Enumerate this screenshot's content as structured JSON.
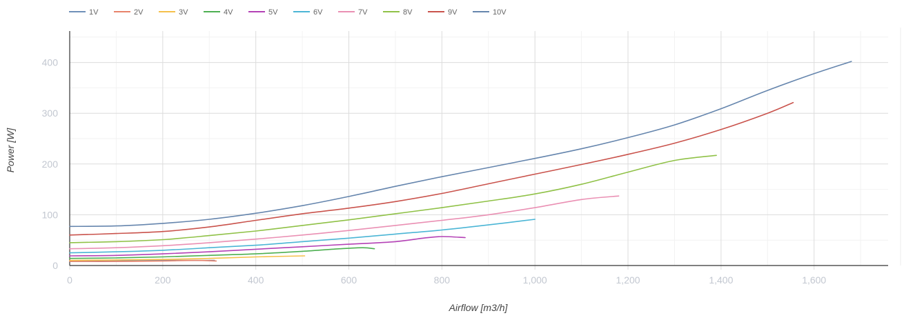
{
  "chart_data": {
    "type": "line",
    "xlabel": "Airflow [m3/h]",
    "ylabel": "Power [W]",
    "xlim": [
      0,
      1750
    ],
    "ylim": [
      0,
      460
    ],
    "x_ticks": [
      {
        "value": 0,
        "label": "0"
      },
      {
        "value": 200,
        "label": "200"
      },
      {
        "value": 400,
        "label": "400"
      },
      {
        "value": 600,
        "label": "600"
      },
      {
        "value": 800,
        "label": "800"
      },
      {
        "value": 1000,
        "label": "1,000"
      },
      {
        "value": 1200,
        "label": "1,200"
      },
      {
        "value": 1400,
        "label": "1,400"
      },
      {
        "value": 1600,
        "label": "1,600"
      }
    ],
    "y_ticks": [
      {
        "value": 0,
        "label": "0"
      },
      {
        "value": 100,
        "label": "100"
      },
      {
        "value": 200,
        "label": "200"
      },
      {
        "value": 300,
        "label": "300"
      },
      {
        "value": 400,
        "label": "400"
      }
    ],
    "grid": true,
    "legend_position": "top-left",
    "series": [
      {
        "name": "1V",
        "color": "#6e8fb8",
        "points": [
          [
            0,
            8
          ],
          [
            100,
            9
          ],
          [
            200,
            10
          ],
          [
            300,
            10
          ],
          [
            310,
            10
          ]
        ]
      },
      {
        "name": "2V",
        "color": "#e8826a",
        "points": [
          [
            0,
            8
          ],
          [
            100,
            8
          ],
          [
            200,
            9
          ],
          [
            270,
            10
          ],
          [
            315,
            9
          ]
        ]
      },
      {
        "name": "3V",
        "color": "#f5c04a",
        "points": [
          [
            0,
            10
          ],
          [
            100,
            11
          ],
          [
            200,
            12
          ],
          [
            300,
            14
          ],
          [
            400,
            17
          ],
          [
            505,
            19
          ]
        ]
      },
      {
        "name": "4V",
        "color": "#4caf50",
        "points": [
          [
            0,
            14
          ],
          [
            100,
            15
          ],
          [
            200,
            17
          ],
          [
            300,
            20
          ],
          [
            400,
            23
          ],
          [
            500,
            28
          ],
          [
            580,
            33
          ],
          [
            630,
            35
          ],
          [
            655,
            33
          ]
        ]
      },
      {
        "name": "5V",
        "color": "#b340b5",
        "points": [
          [
            0,
            19
          ],
          [
            100,
            20
          ],
          [
            200,
            23
          ],
          [
            300,
            27
          ],
          [
            400,
            32
          ],
          [
            500,
            37
          ],
          [
            600,
            42
          ],
          [
            700,
            47
          ],
          [
            760,
            54
          ],
          [
            800,
            57
          ],
          [
            850,
            55
          ]
        ]
      },
      {
        "name": "6V",
        "color": "#4ab5d5",
        "points": [
          [
            0,
            25
          ],
          [
            100,
            27
          ],
          [
            200,
            30
          ],
          [
            300,
            35
          ],
          [
            400,
            40
          ],
          [
            500,
            47
          ],
          [
            600,
            54
          ],
          [
            700,
            62
          ],
          [
            800,
            70
          ],
          [
            900,
            80
          ],
          [
            1000,
            91
          ]
        ]
      },
      {
        "name": "7V",
        "color": "#ea8fb3",
        "points": [
          [
            0,
            33
          ],
          [
            100,
            35
          ],
          [
            200,
            39
          ],
          [
            300,
            45
          ],
          [
            400,
            52
          ],
          [
            500,
            60
          ],
          [
            600,
            69
          ],
          [
            700,
            79
          ],
          [
            800,
            89
          ],
          [
            900,
            100
          ],
          [
            1000,
            114
          ],
          [
            1100,
            130
          ],
          [
            1180,
            137
          ]
        ]
      },
      {
        "name": "8V",
        "color": "#8fc146",
        "points": [
          [
            0,
            45
          ],
          [
            100,
            47
          ],
          [
            200,
            51
          ],
          [
            300,
            59
          ],
          [
            400,
            68
          ],
          [
            500,
            79
          ],
          [
            600,
            90
          ],
          [
            700,
            102
          ],
          [
            800,
            114
          ],
          [
            900,
            127
          ],
          [
            1000,
            141
          ],
          [
            1100,
            160
          ],
          [
            1200,
            184
          ],
          [
            1300,
            207
          ],
          [
            1390,
            217
          ]
        ]
      },
      {
        "name": "9V",
        "color": "#c9524b",
        "points": [
          [
            0,
            60
          ],
          [
            100,
            63
          ],
          [
            200,
            67
          ],
          [
            300,
            76
          ],
          [
            400,
            89
          ],
          [
            500,
            102
          ],
          [
            600,
            113
          ],
          [
            700,
            126
          ],
          [
            800,
            142
          ],
          [
            900,
            161
          ],
          [
            1000,
            180
          ],
          [
            1100,
            199
          ],
          [
            1200,
            219
          ],
          [
            1300,
            241
          ],
          [
            1400,
            268
          ],
          [
            1500,
            300
          ],
          [
            1555,
            321
          ]
        ]
      },
      {
        "name": "10V",
        "color": "#6585ad",
        "points": [
          [
            0,
            77
          ],
          [
            100,
            78
          ],
          [
            200,
            83
          ],
          [
            300,
            91
          ],
          [
            400,
            103
          ],
          [
            500,
            118
          ],
          [
            600,
            136
          ],
          [
            700,
            156
          ],
          [
            800,
            175
          ],
          [
            900,
            193
          ],
          [
            1000,
            211
          ],
          [
            1100,
            230
          ],
          [
            1200,
            252
          ],
          [
            1300,
            277
          ],
          [
            1400,
            309
          ],
          [
            1500,
            345
          ],
          [
            1600,
            378
          ],
          [
            1680,
            402
          ]
        ]
      }
    ]
  }
}
